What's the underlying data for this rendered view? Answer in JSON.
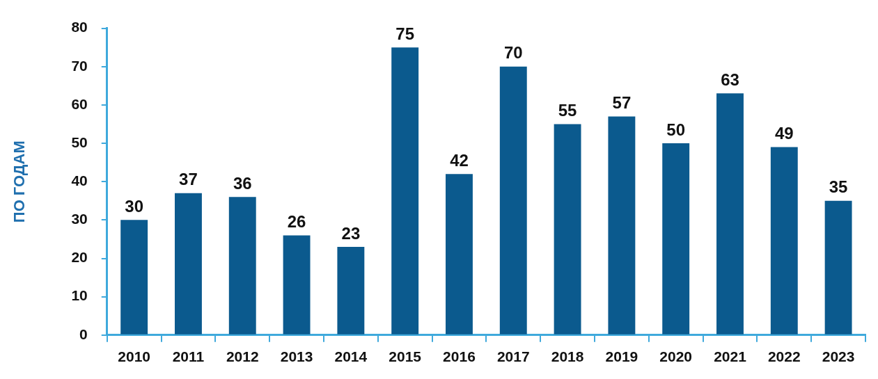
{
  "chart_data": {
    "type": "bar",
    "ylabel": "ПО ГОДАМ",
    "categories": [
      "2010",
      "2011",
      "2012",
      "2013",
      "2014",
      "2015",
      "2016",
      "2017",
      "2018",
      "2019",
      "2020",
      "2021",
      "2022",
      "2023"
    ],
    "values": [
      30,
      37,
      36,
      26,
      23,
      75,
      42,
      70,
      55,
      57,
      50,
      63,
      49,
      35
    ],
    "color": "#0b5a8e",
    "ylim": [
      0,
      80
    ],
    "yticks": [
      0,
      10,
      20,
      30,
      40,
      50,
      60,
      70,
      80
    ],
    "grid": false,
    "data_labels": true,
    "legend": false
  }
}
